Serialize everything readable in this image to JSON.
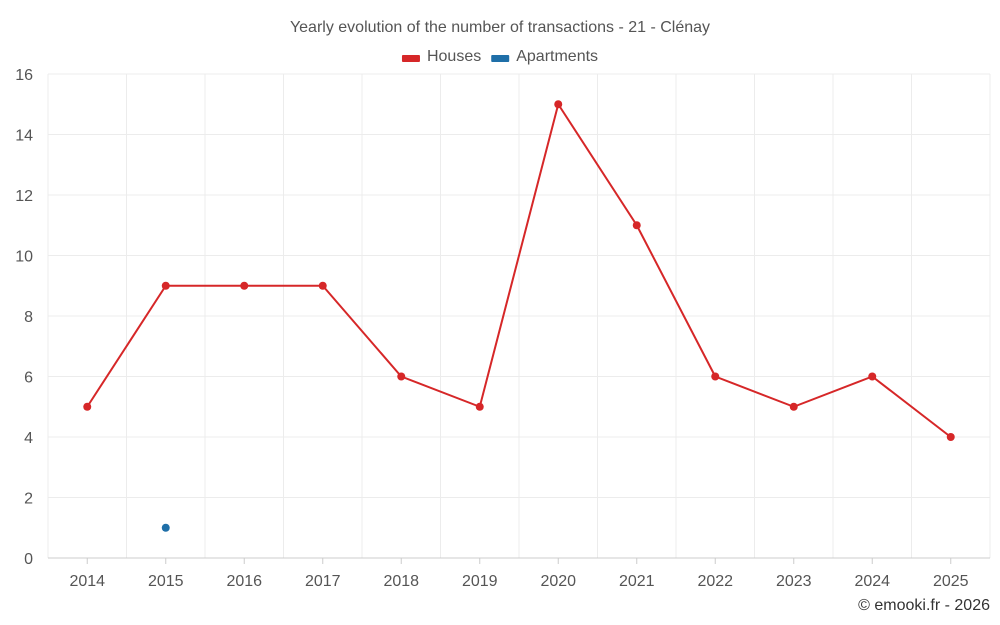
{
  "chart_data": {
    "type": "line",
    "title": "Yearly evolution of the number of transactions - 21 - Clénay",
    "x": [
      "2014",
      "2015",
      "2016",
      "2017",
      "2018",
      "2019",
      "2020",
      "2021",
      "2022",
      "2023",
      "2024",
      "2025"
    ],
    "ylim": [
      0,
      16
    ],
    "yticks": [
      0,
      2,
      4,
      6,
      8,
      10,
      12,
      14,
      16
    ],
    "grid": true,
    "legend_position": "top-center",
    "series": [
      {
        "name": "Houses",
        "color": "#d62728",
        "values": [
          5,
          9,
          9,
          9,
          6,
          5,
          15,
          11,
          6,
          5,
          6,
          4
        ]
      },
      {
        "name": "Apartments",
        "color": "#1f6fa8",
        "values": [
          null,
          1,
          null,
          null,
          null,
          null,
          null,
          null,
          null,
          null,
          null,
          null
        ]
      }
    ],
    "credit": "© emooki.fr - 2026"
  }
}
